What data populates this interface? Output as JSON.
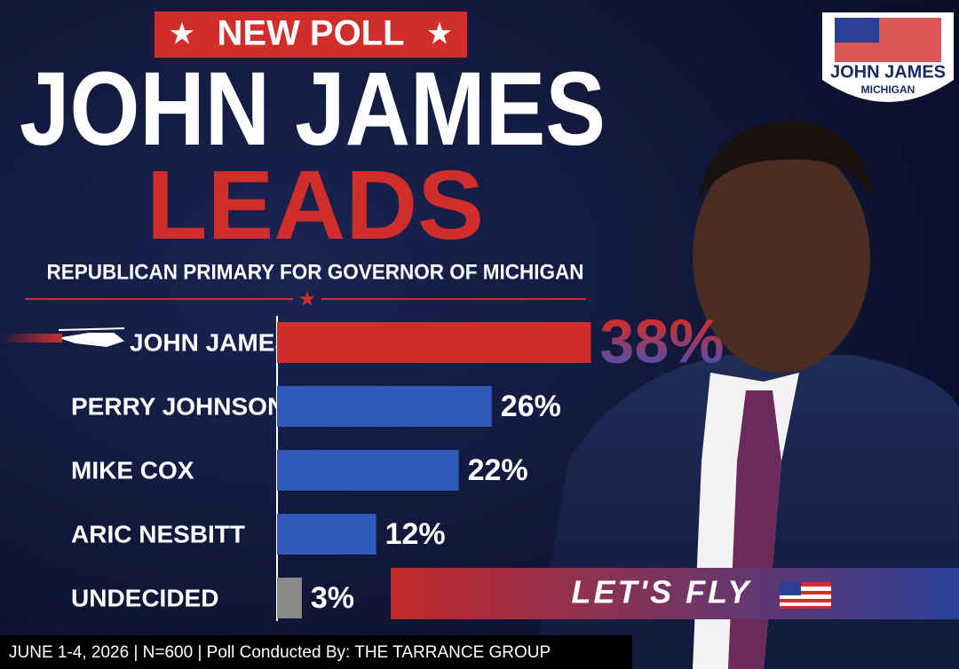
{
  "chart_data": {
    "type": "bar",
    "banner": "NEW POLL",
    "title": "JOHN JAMES",
    "title_highlight": "LEADS",
    "subtitle": "REPUBLICAN PRIMARY FOR GOVERNOR OF MICHIGAN",
    "categories": [
      "JOHN JAMES",
      "PERRY JOHNSON",
      "MIKE COX",
      "ARIC NESBITT",
      "UNDECIDED"
    ],
    "values": [
      38,
      26,
      22,
      12,
      3
    ],
    "value_labels": [
      "38%",
      "26%",
      "22%",
      "12%",
      "3%"
    ],
    "colors": [
      "#d12d2b",
      "#2f5bb8",
      "#2f5bb8",
      "#2f5bb8",
      "#8a8a8a"
    ],
    "badge": "LET'S FLY",
    "logo": {
      "name": "JOHN JAMES",
      "state": "MICHIGAN"
    },
    "footer": "JUNE 1-4, 2026 | N=600 | Poll Conducted By: THE TARRANCE GROUP"
  }
}
